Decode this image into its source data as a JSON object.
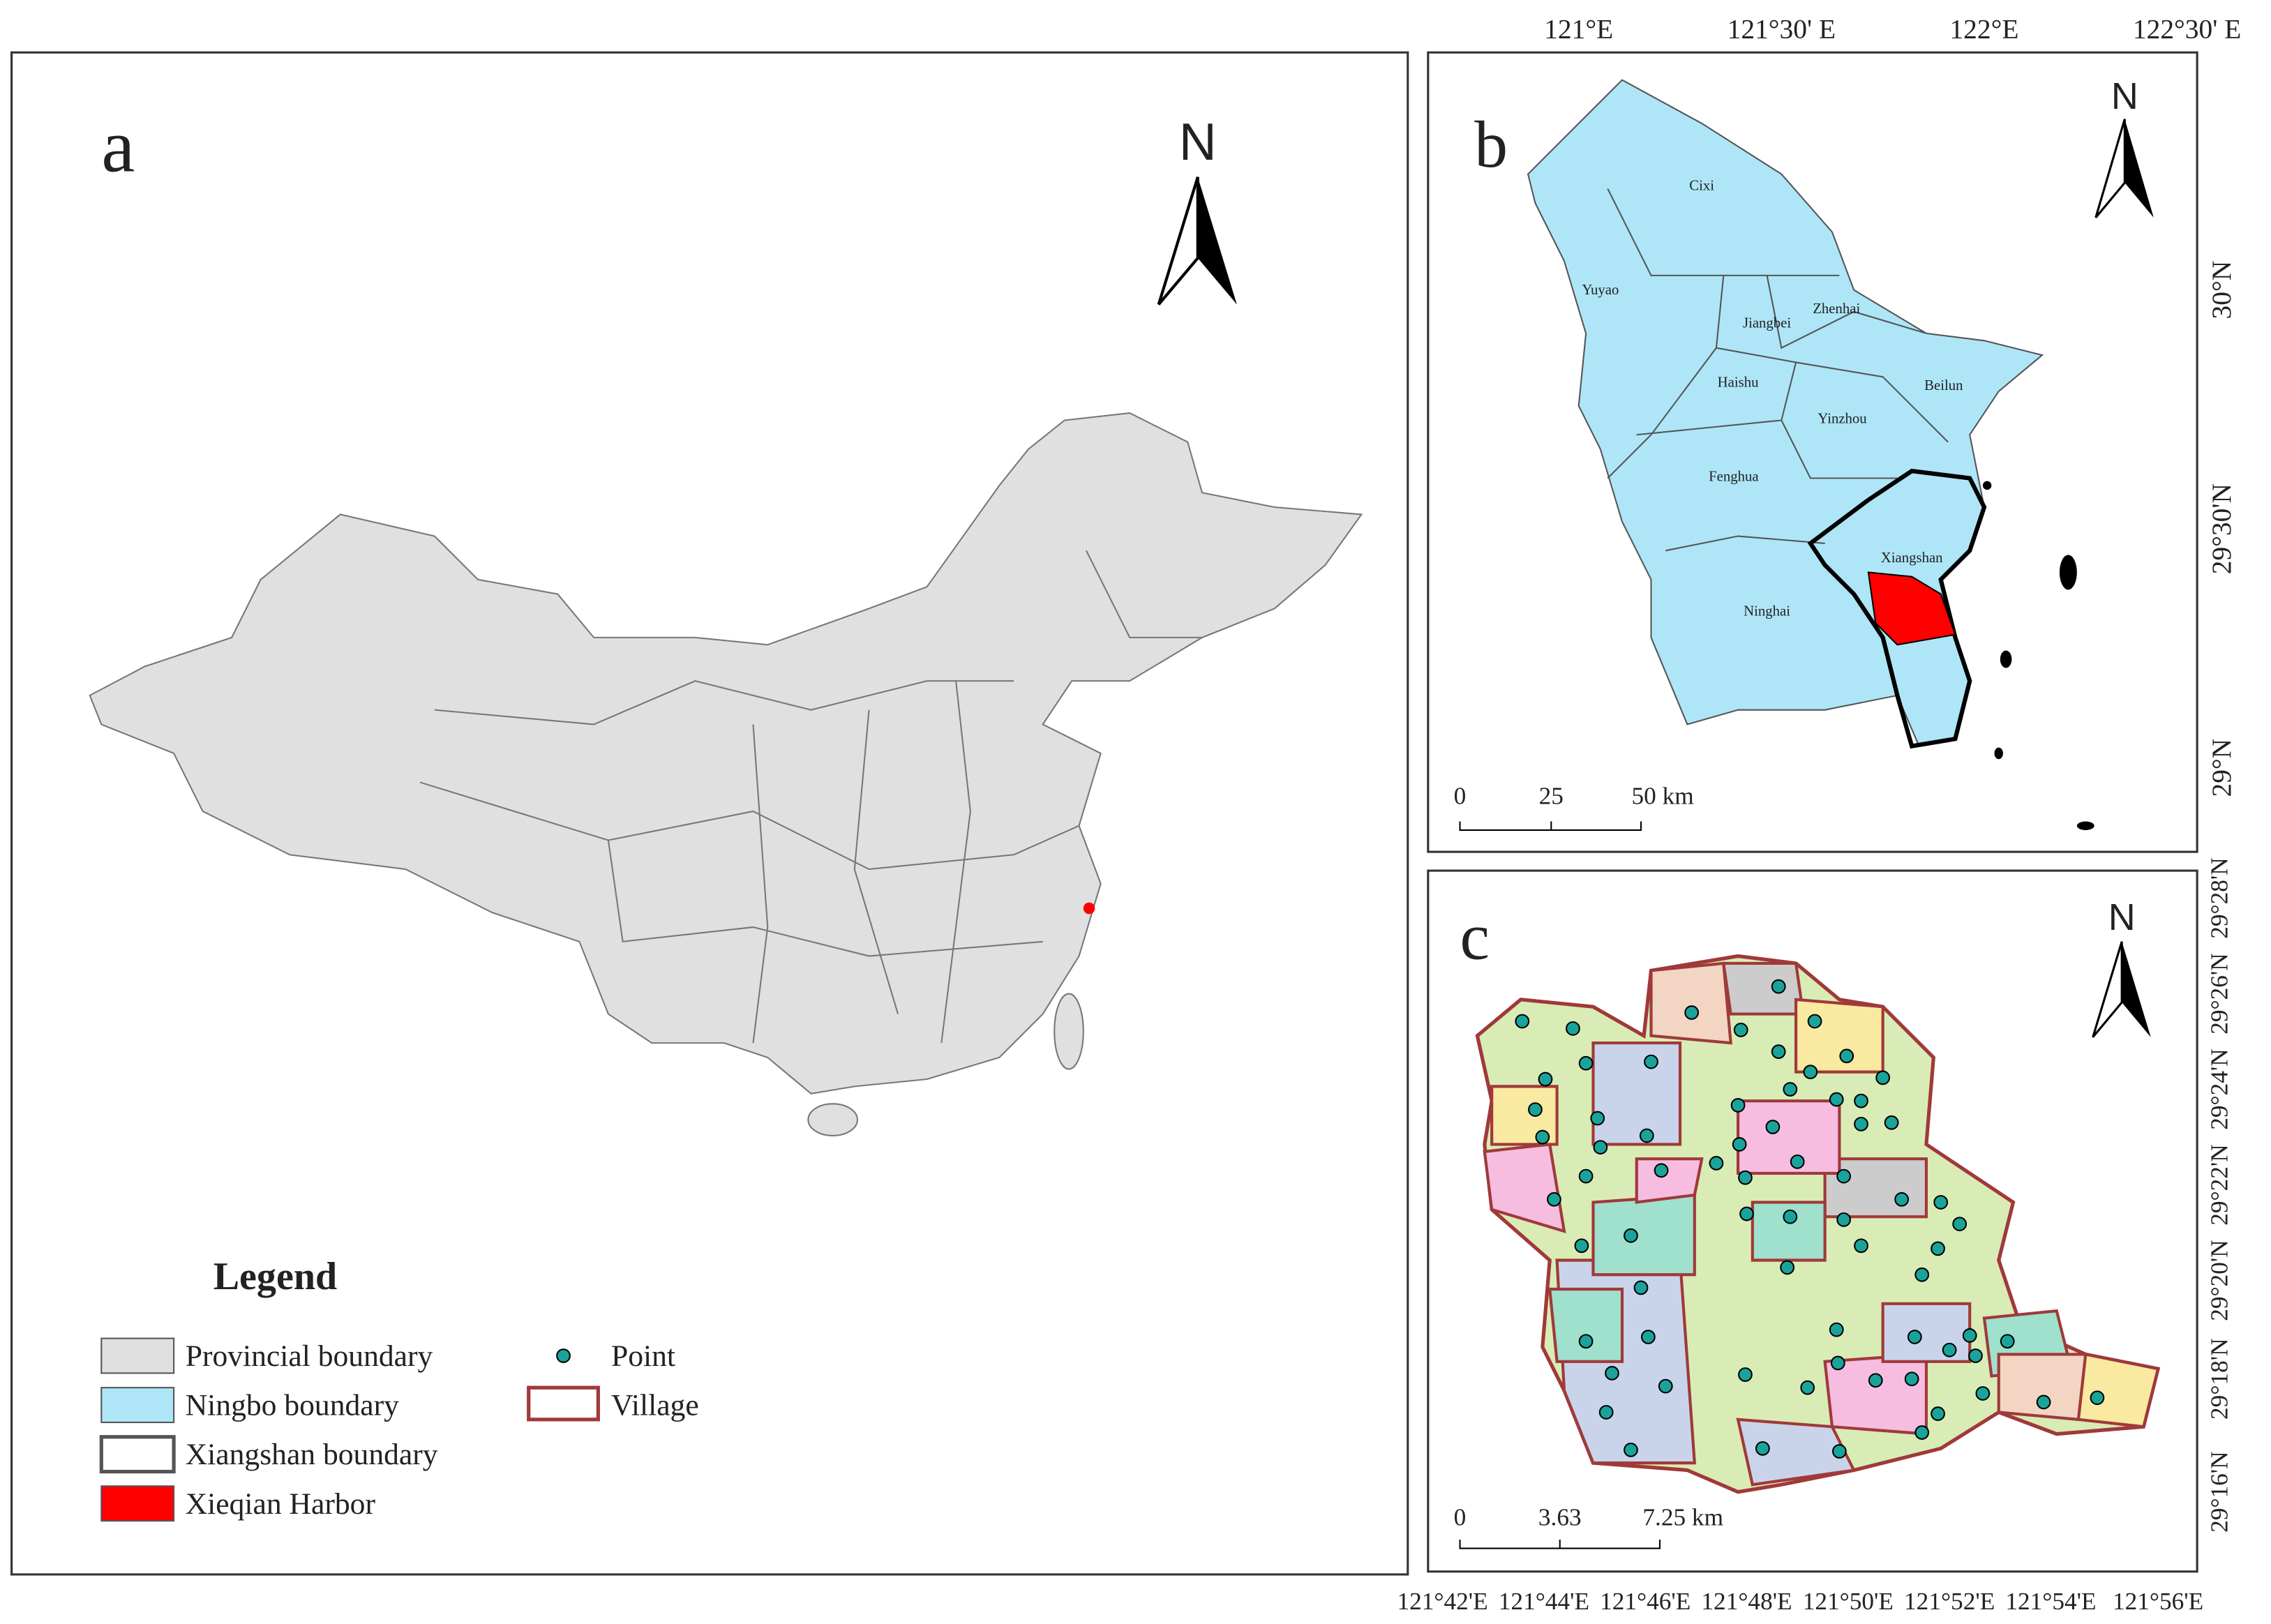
{
  "panel_a": {
    "label": "a",
    "north": "N",
    "legend": {
      "title": "Legend",
      "items": [
        {
          "label": "Provincial boundary",
          "color": "#e0e0e0"
        },
        {
          "label": "Ningbo boundary",
          "color": "#aee6f8"
        },
        {
          "label": "Xiangshan boundary",
          "color": "#ffffff"
        },
        {
          "label": "Xieqian Harbor",
          "color": "#ff0000"
        },
        {
          "label": "Point",
          "color": "#1aa39a"
        },
        {
          "label": "Village",
          "color": "#ffffff"
        }
      ]
    }
  },
  "panel_b": {
    "label": "b",
    "north": "N",
    "districts": [
      "Cixi",
      "Yuyao",
      "Jiangbei",
      "Zhenhai",
      "Haishu",
      "Beilun",
      "Yinzhou",
      "Fenghua",
      "Xiangshan",
      "Ninghai"
    ],
    "x_labels": [
      "121°E",
      "121°30' E",
      "122°E",
      "122°30' E"
    ],
    "y_labels": [
      "30°N",
      "29°30'N",
      "29°N"
    ],
    "scale": [
      "0",
      "25",
      "50 km"
    ]
  },
  "panel_c": {
    "label": "c",
    "north": "N",
    "x_labels": [
      "121°42'E",
      "121°44'E",
      "121°46'E",
      "121°48'E",
      "121°50'E",
      "121°52'E",
      "121°54'E",
      "121°56'E"
    ],
    "y_labels": [
      "29°28'N",
      "29°26'N",
      "29°24'N",
      "29°22'N",
      "29°20'N",
      "29°18'N",
      "29°16'N"
    ],
    "scale": [
      "0",
      "3.63",
      "7.25 km"
    ]
  }
}
